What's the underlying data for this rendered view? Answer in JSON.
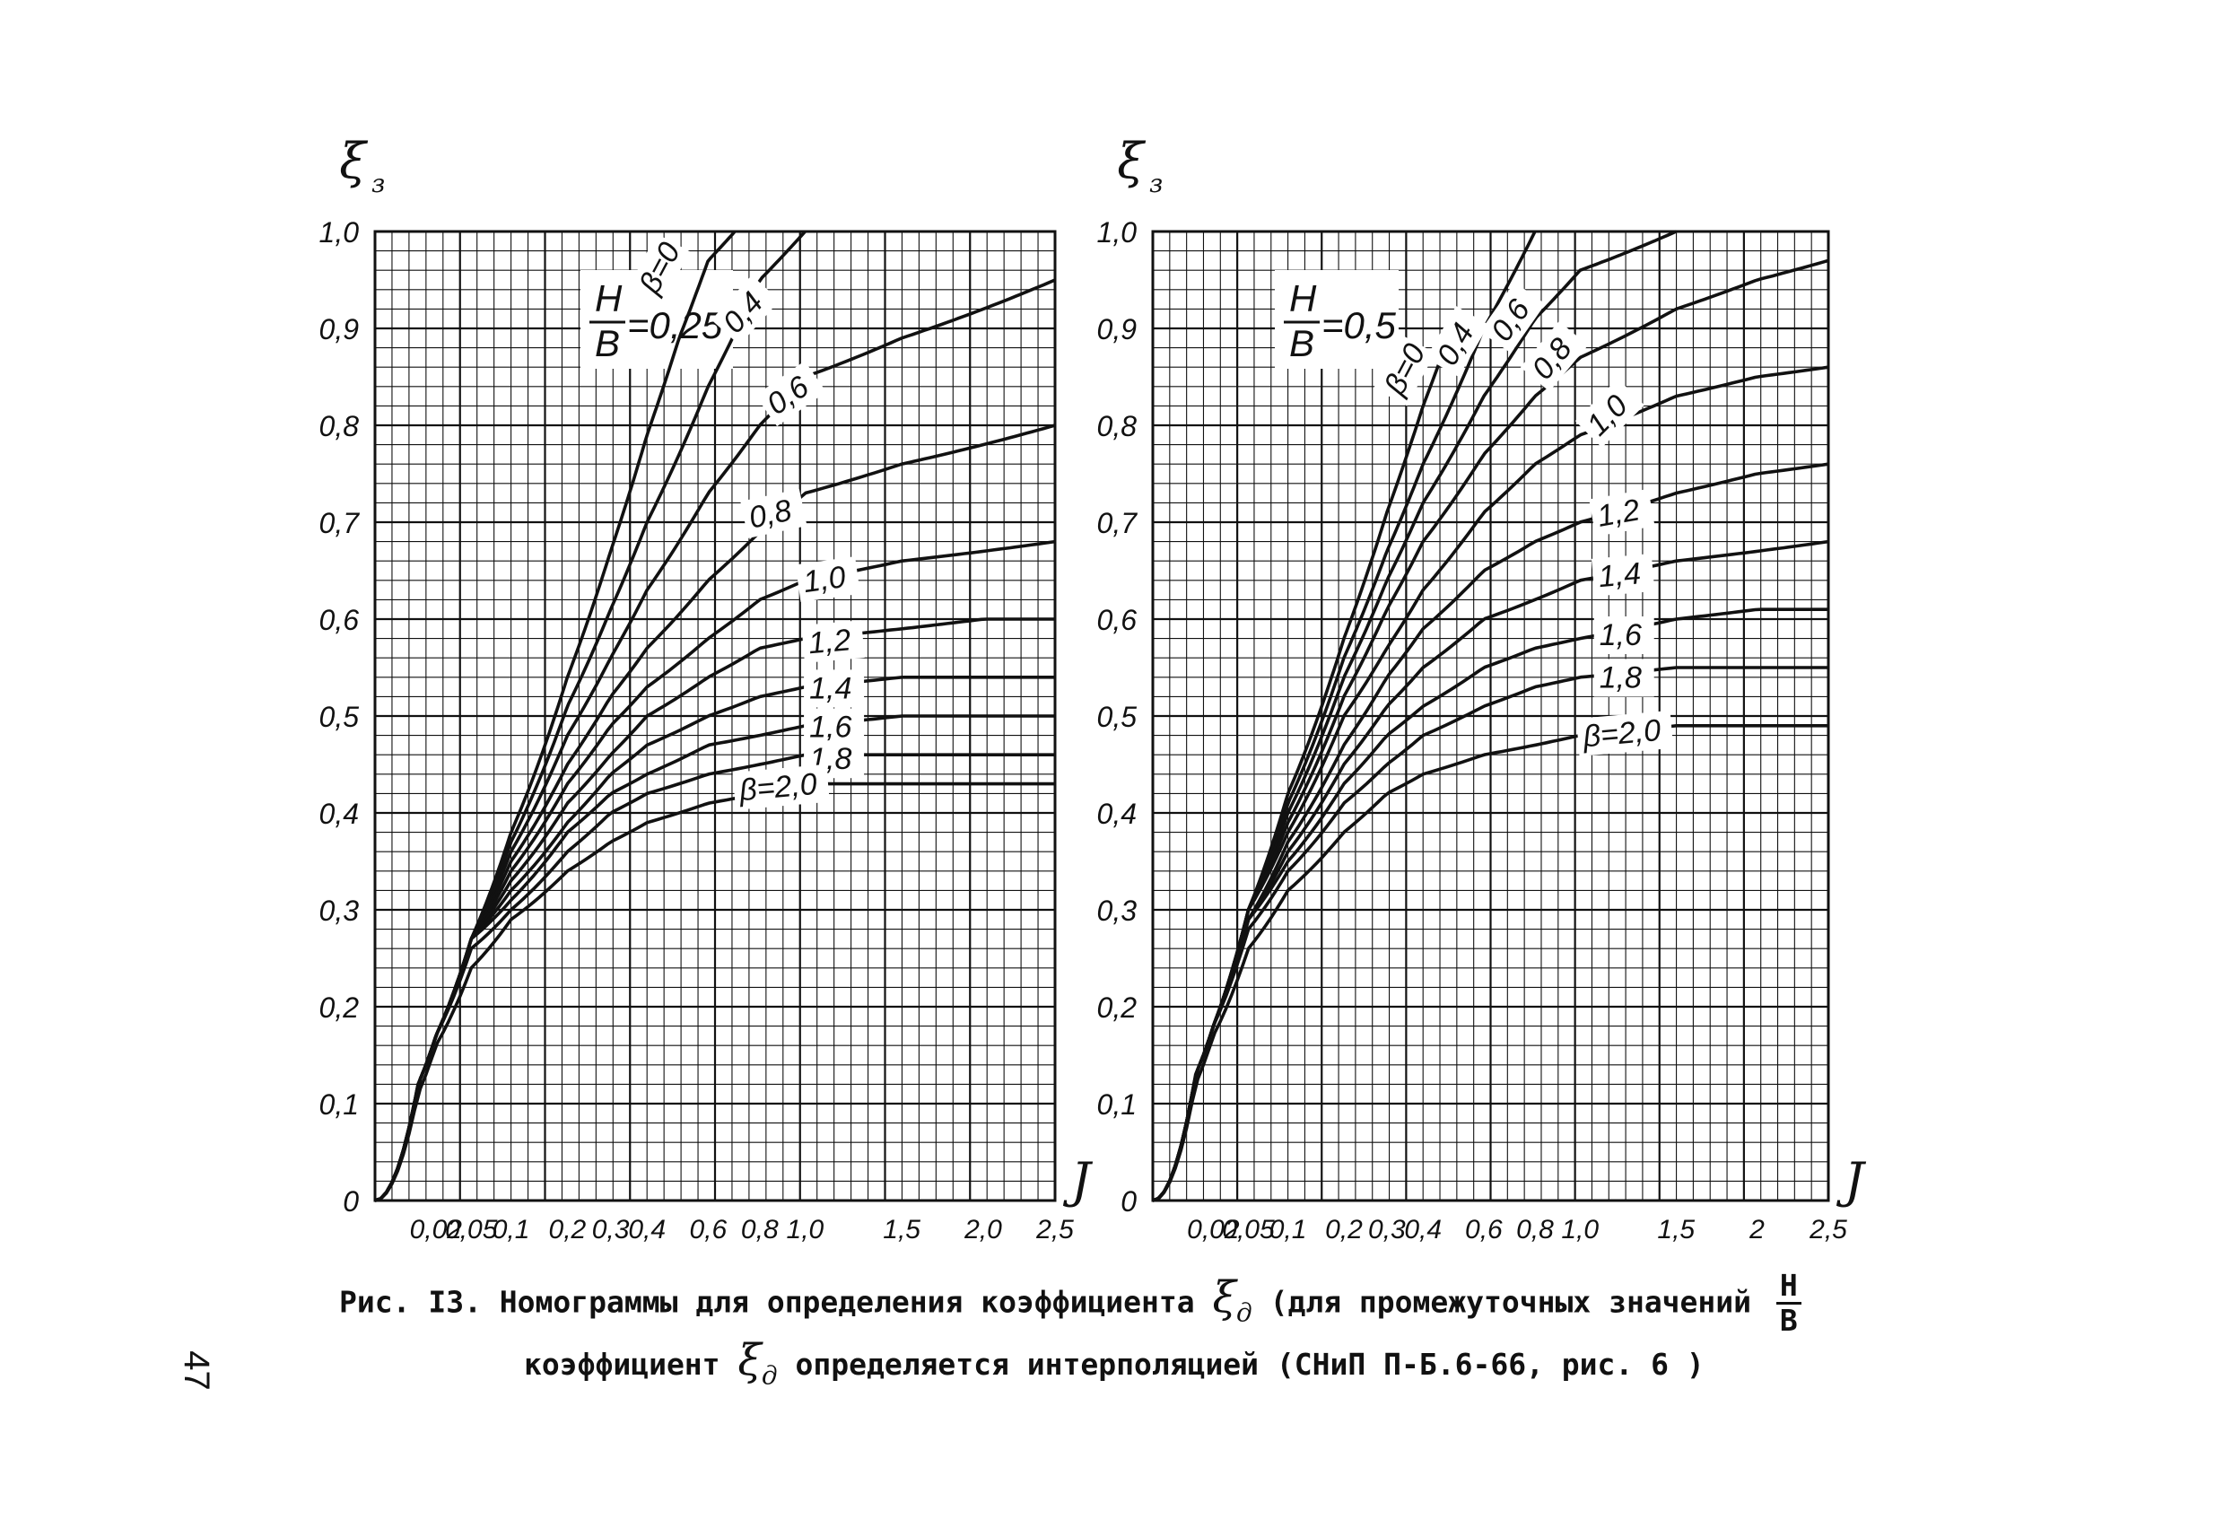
{
  "chart_data": [
    {
      "type": "line",
      "hb_label": "H/B=0,25",
      "hb_num": "H",
      "hb_den": "B",
      "hb_value": "=0,25",
      "ylabel": "ξ",
      "ylabel_sub": "з",
      "xlabel": "J",
      "ylim": [
        0,
        1.0
      ],
      "xlim": [
        0,
        2.5
      ],
      "x_scale": "sqrt",
      "grid": true,
      "y_ticks": [
        0,
        0.1,
        0.2,
        0.3,
        0.4,
        0.5,
        0.6,
        0.7,
        0.8,
        0.9,
        1.0
      ],
      "y_tick_labels": [
        "0",
        "0,1",
        "0,2",
        "0,3",
        "0,4",
        "0,5",
        "0,6",
        "0,7",
        "0,8",
        "0,9",
        "1,0"
      ],
      "x_ticks": [
        0.02,
        0.05,
        0.1,
        0.2,
        0.3,
        0.4,
        0.6,
        0.8,
        1.0,
        1.5,
        2.0,
        2.5
      ],
      "x_tick_labels": [
        "0,02",
        "0,05",
        "0,1",
        "0,2",
        "0,3",
        "0,4",
        "0,6",
        "0,8",
        "1,0",
        "1,5",
        "2,0",
        "2,5"
      ],
      "series": [
        {
          "name": "β=0",
          "label": "β=0",
          "x": [
            0,
            0.01,
            0.02,
            0.05,
            0.1,
            0.2,
            0.3,
            0.4,
            0.5,
            0.6,
            0.7
          ],
          "y": [
            0,
            0.12,
            0.17,
            0.27,
            0.38,
            0.54,
            0.67,
            0.79,
            0.89,
            0.97,
            1.0
          ]
        },
        {
          "name": "0,4",
          "label": "0,4",
          "x": [
            0,
            0.01,
            0.02,
            0.05,
            0.1,
            0.2,
            0.3,
            0.4,
            0.6,
            0.8,
            1.0
          ],
          "y": [
            0,
            0.12,
            0.17,
            0.27,
            0.37,
            0.51,
            0.61,
            0.7,
            0.84,
            0.95,
            1.0
          ]
        },
        {
          "name": "0,6",
          "label": "0,6",
          "x": [
            0,
            0.01,
            0.02,
            0.05,
            0.1,
            0.2,
            0.3,
            0.4,
            0.6,
            0.8,
            1.0,
            1.5,
            2.0,
            2.5
          ],
          "y": [
            0,
            0.12,
            0.17,
            0.27,
            0.36,
            0.48,
            0.56,
            0.63,
            0.73,
            0.8,
            0.85,
            0.89,
            0.92,
            0.95
          ]
        },
        {
          "name": "0,8",
          "label": "0,8",
          "x": [
            0,
            0.01,
            0.02,
            0.05,
            0.1,
            0.2,
            0.3,
            0.4,
            0.6,
            0.8,
            1.0,
            1.5,
            2.0,
            2.5
          ],
          "y": [
            0,
            0.12,
            0.17,
            0.27,
            0.35,
            0.45,
            0.52,
            0.57,
            0.64,
            0.69,
            0.73,
            0.76,
            0.78,
            0.8
          ]
        },
        {
          "name": "1,0",
          "label": "1,0",
          "x": [
            0,
            0.01,
            0.02,
            0.05,
            0.1,
            0.2,
            0.3,
            0.4,
            0.6,
            0.8,
            1.0,
            1.5,
            2.0,
            2.5
          ],
          "y": [
            0,
            0.12,
            0.17,
            0.27,
            0.34,
            0.43,
            0.49,
            0.53,
            0.58,
            0.62,
            0.64,
            0.66,
            0.67,
            0.68
          ]
        },
        {
          "name": "1,2",
          "label": "1,2",
          "x": [
            0,
            0.01,
            0.02,
            0.05,
            0.1,
            0.2,
            0.3,
            0.4,
            0.6,
            0.8,
            1.0,
            1.5,
            2.0,
            2.5
          ],
          "y": [
            0,
            0.12,
            0.17,
            0.27,
            0.33,
            0.41,
            0.46,
            0.5,
            0.54,
            0.57,
            0.58,
            0.59,
            0.6,
            0.6
          ]
        },
        {
          "name": "1,4",
          "label": "1,4",
          "x": [
            0,
            0.01,
            0.02,
            0.05,
            0.1,
            0.2,
            0.3,
            0.4,
            0.6,
            0.8,
            1.0,
            1.5,
            2.0,
            2.5
          ],
          "y": [
            0,
            0.12,
            0.17,
            0.27,
            0.32,
            0.39,
            0.44,
            0.47,
            0.5,
            0.52,
            0.53,
            0.54,
            0.54,
            0.54
          ]
        },
        {
          "name": "1,6",
          "label": "1,6",
          "x": [
            0,
            0.01,
            0.02,
            0.05,
            0.1,
            0.2,
            0.3,
            0.4,
            0.6,
            0.8,
            1.0,
            1.5,
            2.0,
            2.5
          ],
          "y": [
            0,
            0.12,
            0.17,
            0.27,
            0.31,
            0.38,
            0.42,
            0.44,
            0.47,
            0.48,
            0.49,
            0.5,
            0.5,
            0.5
          ]
        },
        {
          "name": "1,8",
          "label": "1,8",
          "x": [
            0,
            0.01,
            0.02,
            0.05,
            0.1,
            0.2,
            0.3,
            0.4,
            0.6,
            0.8,
            1.0,
            1.5,
            2.0,
            2.5
          ],
          "y": [
            0,
            0.12,
            0.17,
            0.26,
            0.3,
            0.36,
            0.4,
            0.42,
            0.44,
            0.45,
            0.46,
            0.46,
            0.46,
            0.46
          ]
        },
        {
          "name": "β=2,0",
          "label": "β=2,0",
          "x": [
            0,
            0.01,
            0.02,
            0.05,
            0.1,
            0.2,
            0.3,
            0.4,
            0.6,
            0.8,
            1.0,
            1.5,
            2.0,
            2.5
          ],
          "y": [
            0,
            0.11,
            0.16,
            0.24,
            0.29,
            0.34,
            0.37,
            0.39,
            0.41,
            0.42,
            0.43,
            0.43,
            0.43,
            0.43
          ]
        }
      ]
    },
    {
      "type": "line",
      "hb_label": "H/B=0,5",
      "hb_num": "H",
      "hb_den": "B",
      "hb_value": "=0,5",
      "ylabel": "ξ",
      "ylabel_sub": "з",
      "xlabel": "J",
      "ylim": [
        0,
        1.0
      ],
      "xlim": [
        0,
        2.5
      ],
      "x_scale": "sqrt",
      "grid": true,
      "y_ticks": [
        0,
        0.1,
        0.2,
        0.3,
        0.4,
        0.5,
        0.6,
        0.7,
        0.8,
        0.9,
        1.0
      ],
      "y_tick_labels": [
        "0",
        "0,1",
        "0,2",
        "0,3",
        "0,4",
        "0,5",
        "0,6",
        "0,7",
        "0,8",
        "0,9",
        "1,0"
      ],
      "x_ticks": [
        0.02,
        0.05,
        0.1,
        0.2,
        0.3,
        0.4,
        0.6,
        0.8,
        1.0,
        1.5,
        2.0,
        2.5
      ],
      "x_tick_labels": [
        "0,02",
        "0,05",
        "0,1",
        "0,2",
        "0,3",
        "0,4",
        "0,6",
        "0,8",
        "1,0",
        "1,5",
        "2",
        "2,5"
      ],
      "series": [
        {
          "name": "β=0",
          "label": "β=0",
          "x": [
            0,
            0.01,
            0.02,
            0.05,
            0.1,
            0.2,
            0.3,
            0.4,
            0.5
          ],
          "y": [
            0,
            0.13,
            0.18,
            0.3,
            0.42,
            0.58,
            0.71,
            0.82,
            0.91
          ]
        },
        {
          "name": "0,4",
          "label": "0,4",
          "x": [
            0,
            0.01,
            0.02,
            0.05,
            0.1,
            0.2,
            0.3,
            0.4,
            0.6,
            0.8
          ],
          "y": [
            0,
            0.13,
            0.18,
            0.3,
            0.41,
            0.56,
            0.67,
            0.76,
            0.9,
            1.0
          ]
        },
        {
          "name": "0,6",
          "label": "0,6",
          "x": [
            0,
            0.01,
            0.02,
            0.05,
            0.1,
            0.2,
            0.3,
            0.4,
            0.6,
            0.8,
            1.0,
            1.5
          ],
          "y": [
            0,
            0.13,
            0.18,
            0.3,
            0.4,
            0.54,
            0.64,
            0.72,
            0.83,
            0.91,
            0.96,
            1.0
          ]
        },
        {
          "name": "0,8",
          "label": "0,8",
          "x": [
            0,
            0.01,
            0.02,
            0.05,
            0.1,
            0.2,
            0.3,
            0.4,
            0.6,
            0.8,
            1.0,
            1.5,
            2.0,
            2.5
          ],
          "y": [
            0,
            0.13,
            0.18,
            0.3,
            0.39,
            0.52,
            0.61,
            0.68,
            0.77,
            0.83,
            0.87,
            0.92,
            0.95,
            0.97
          ]
        },
        {
          "name": "1,0",
          "label": "1,0",
          "x": [
            0,
            0.01,
            0.02,
            0.05,
            0.1,
            0.2,
            0.3,
            0.4,
            0.6,
            0.8,
            1.0,
            1.5,
            2.0,
            2.5
          ],
          "y": [
            0,
            0.13,
            0.18,
            0.3,
            0.38,
            0.5,
            0.57,
            0.63,
            0.71,
            0.76,
            0.79,
            0.83,
            0.85,
            0.86
          ]
        },
        {
          "name": "1,2",
          "label": "1,2",
          "x": [
            0,
            0.01,
            0.02,
            0.05,
            0.1,
            0.2,
            0.3,
            0.4,
            0.6,
            0.8,
            1.0,
            1.5,
            2.0,
            2.5
          ],
          "y": [
            0,
            0.13,
            0.18,
            0.29,
            0.37,
            0.47,
            0.54,
            0.59,
            0.65,
            0.68,
            0.7,
            0.73,
            0.75,
            0.76
          ]
        },
        {
          "name": "1,4",
          "label": "1,4",
          "x": [
            0,
            0.01,
            0.02,
            0.05,
            0.1,
            0.2,
            0.3,
            0.4,
            0.6,
            0.8,
            1.0,
            1.5,
            2.0,
            2.5
          ],
          "y": [
            0,
            0.13,
            0.18,
            0.29,
            0.36,
            0.45,
            0.51,
            0.55,
            0.6,
            0.62,
            0.64,
            0.66,
            0.67,
            0.68
          ]
        },
        {
          "name": "1,6",
          "label": "1,6",
          "x": [
            0,
            0.01,
            0.02,
            0.05,
            0.1,
            0.2,
            0.3,
            0.4,
            0.6,
            0.8,
            1.0,
            1.5,
            2.0,
            2.5
          ],
          "y": [
            0,
            0.13,
            0.18,
            0.29,
            0.35,
            0.43,
            0.48,
            0.51,
            0.55,
            0.57,
            0.58,
            0.6,
            0.61,
            0.61
          ]
        },
        {
          "name": "1,8",
          "label": "1,8",
          "x": [
            0,
            0.01,
            0.02,
            0.05,
            0.1,
            0.2,
            0.3,
            0.4,
            0.6,
            0.8,
            1.0,
            1.5,
            2.0,
            2.5
          ],
          "y": [
            0,
            0.13,
            0.18,
            0.28,
            0.34,
            0.41,
            0.45,
            0.48,
            0.51,
            0.53,
            0.54,
            0.55,
            0.55,
            0.55
          ]
        },
        {
          "name": "β=2,0",
          "label": "β=2,0",
          "x": [
            0,
            0.01,
            0.02,
            0.05,
            0.1,
            0.2,
            0.3,
            0.4,
            0.6,
            0.8,
            1.0,
            1.5,
            2.0,
            2.5
          ],
          "y": [
            0,
            0.12,
            0.17,
            0.26,
            0.32,
            0.38,
            0.42,
            0.44,
            0.46,
            0.47,
            0.48,
            0.49,
            0.49,
            0.49
          ]
        }
      ]
    }
  ],
  "caption": {
    "line1_prefix": "Рис. I3. Номограммы для определения коэффициента",
    "xi_symbol": "ξ",
    "xi_sub": "д",
    "line1_suffix": "(для промежуточных значений",
    "frac_num": "Н",
    "frac_den": "В",
    "line2_prefix": "коэффициент",
    "line2_suffix": "определяется интерполяцией (СНиП П-Б.6-66, рис. 6 )"
  },
  "page_number": "47"
}
